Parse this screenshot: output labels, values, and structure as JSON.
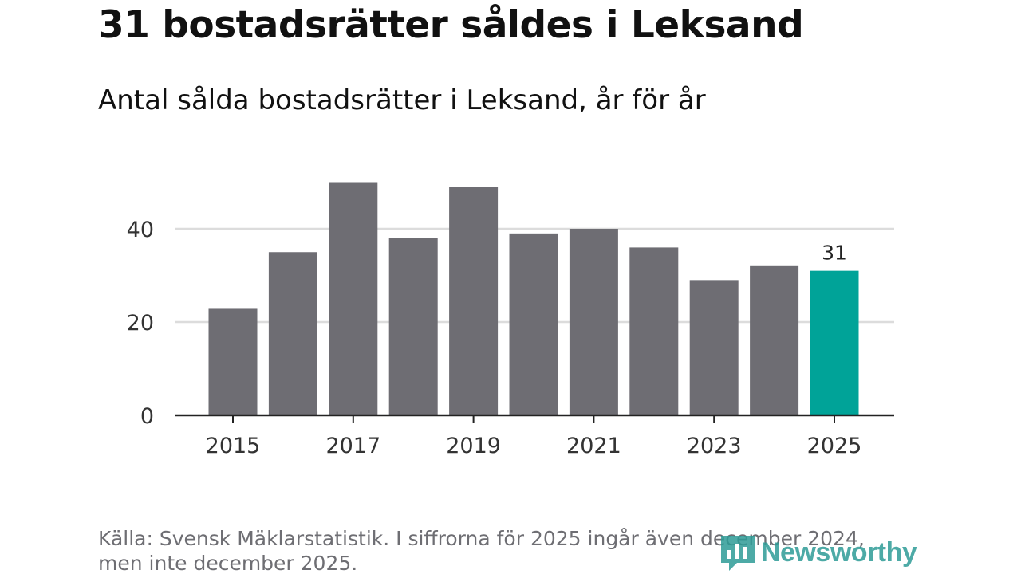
{
  "title": "31 bostadsrätter såldes i Leksand",
  "subtitle": "Antal sålda bostadsrätter i Leksand, år för år",
  "source": "Källa: Svensk Mäklarstatistik. I siffrorna för 2025 ingår även december 2024, men inte december 2025.",
  "logo_text": "Newsworthy",
  "colors": {
    "bar": "#6e6d73",
    "highlight": "#00a398",
    "grid": "#dcdcdc",
    "axis": "#222222",
    "logo": "#2e9c97"
  },
  "chart_data": {
    "type": "bar",
    "title": "31 bostadsrätter såldes i Leksand",
    "subtitle": "Antal sålda bostadsrätter i Leksand, år för år",
    "xlabel": "",
    "ylabel": "",
    "categories": [
      "2015",
      "2016",
      "2017",
      "2018",
      "2019",
      "2020",
      "2021",
      "2022",
      "2023",
      "2024",
      "2025"
    ],
    "values": [
      23,
      35,
      50,
      38,
      49,
      39,
      40,
      36,
      29,
      32,
      31
    ],
    "highlight_category": "2025",
    "data_labels": [
      {
        "category": "2025",
        "label": "31"
      }
    ],
    "ylim": [
      0,
      55
    ],
    "yticks": [
      0,
      20,
      40
    ],
    "xtick_labels": [
      "2015",
      "2017",
      "2019",
      "2021",
      "2023",
      "2025"
    ],
    "grid": true,
    "legend": "none"
  }
}
